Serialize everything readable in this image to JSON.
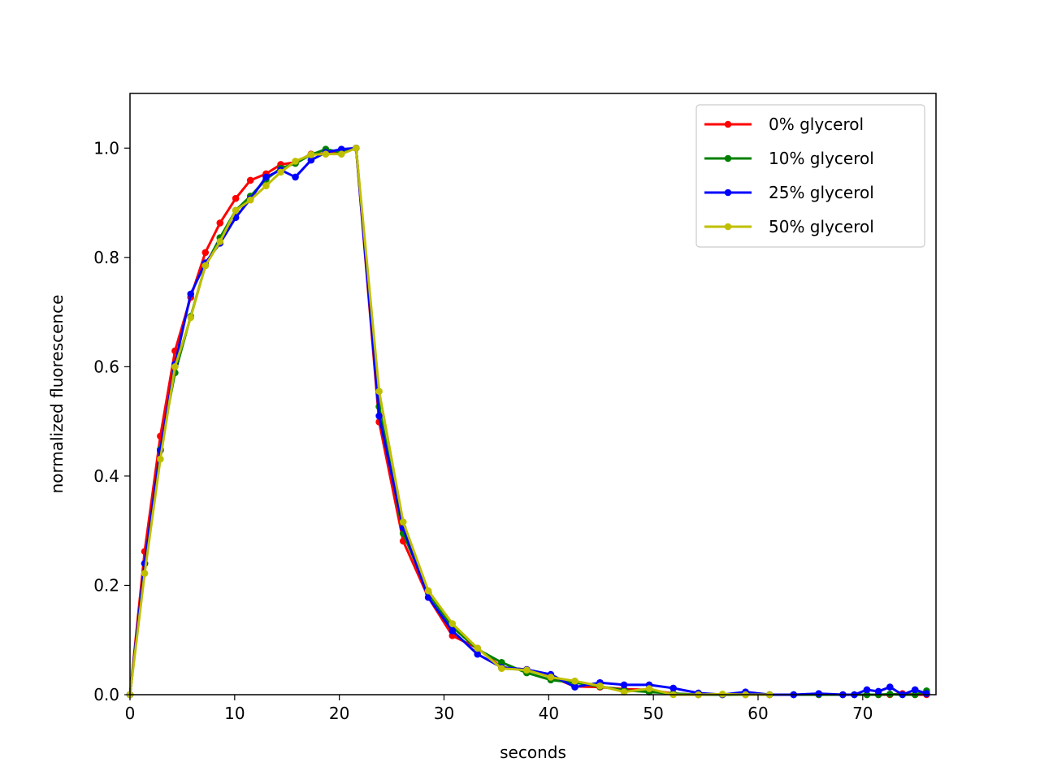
{
  "chart_data": {
    "type": "line",
    "title": "",
    "xlabel": "seconds",
    "ylabel": "normalized fluorescence",
    "xlim": [
      0,
      77
    ],
    "ylim": [
      0,
      1.1
    ],
    "xticks": [
      0,
      10,
      20,
      30,
      40,
      50,
      60,
      70
    ],
    "yticks": [
      0.0,
      0.2,
      0.4,
      0.6,
      0.8,
      1.0
    ],
    "xtick_labels": [
      "0",
      "10",
      "20",
      "30",
      "40",
      "50",
      "60",
      "70"
    ],
    "ytick_labels": [
      "0.0",
      "0.2",
      "0.4",
      "0.6",
      "0.8",
      "1.0"
    ],
    "grid": false,
    "legend_position": "top-right",
    "series": [
      {
        "name": "0% glycerol",
        "color": "#ff0000",
        "x": [
          0,
          1.4,
          2.9,
          4.3,
          5.8,
          7.2,
          8.6,
          10.1,
          11.5,
          13.0,
          14.4,
          15.8,
          17.3,
          18.7,
          20.2,
          21.6,
          23.8,
          26.1,
          28.5,
          30.8,
          33.2,
          35.5,
          37.9,
          40.2,
          42.5,
          44.9,
          47.2,
          49.6,
          51.9,
          54.3,
          56.6,
          58.8,
          61.1,
          63.4,
          65.8,
          68.1,
          69.2,
          70.4,
          71.5,
          72.6,
          73.8,
          75.0,
          76.1
        ],
        "y": [
          0.0,
          0.262,
          0.473,
          0.629,
          0.727,
          0.809,
          0.863,
          0.908,
          0.941,
          0.953,
          0.97,
          0.974,
          0.989,
          0.99,
          0.991,
          1.0,
          0.499,
          0.281,
          0.178,
          0.108,
          0.085,
          0.05,
          0.046,
          0.033,
          0.015,
          0.014,
          0.01,
          0.009,
          0.002,
          0.0,
          0.0,
          0.0,
          0.0,
          0.0,
          0.0,
          0.0,
          0.0,
          0.0,
          0.0,
          0.0,
          0.002,
          0.0,
          0.0
        ]
      },
      {
        "name": "10% glycerol",
        "color": "#008000",
        "x": [
          0,
          1.4,
          2.9,
          4.3,
          5.8,
          7.2,
          8.6,
          10.1,
          11.5,
          13.0,
          14.4,
          15.8,
          17.3,
          18.7,
          20.2,
          21.6,
          23.8,
          26.1,
          28.5,
          30.8,
          33.2,
          35.5,
          37.9,
          40.2,
          42.5,
          44.9,
          47.2,
          49.6,
          51.9,
          54.3,
          56.6,
          58.8,
          61.1,
          63.4,
          65.8,
          68.1,
          69.2,
          70.4,
          71.5,
          72.6,
          73.8,
          75.0,
          76.1
        ],
        "y": [
          0.0,
          0.24,
          0.449,
          0.589,
          0.692,
          0.785,
          0.836,
          0.886,
          0.912,
          0.943,
          0.963,
          0.972,
          0.988,
          0.998,
          0.992,
          1.0,
          0.527,
          0.295,
          0.186,
          0.124,
          0.083,
          0.059,
          0.04,
          0.027,
          0.022,
          0.015,
          0.008,
          0.005,
          0.002,
          0.0,
          0.0,
          0.0,
          0.0,
          0.0,
          0.0,
          0.0,
          0.0,
          0.0,
          0.0,
          0.001,
          0.0,
          0.0,
          0.007
        ]
      },
      {
        "name": "25% glycerol",
        "color": "#0000ff",
        "x": [
          0,
          1.4,
          2.9,
          4.3,
          5.8,
          7.2,
          8.6,
          10.1,
          11.5,
          13.0,
          14.4,
          15.8,
          17.3,
          18.7,
          20.2,
          21.6,
          23.8,
          26.1,
          28.5,
          30.8,
          33.2,
          35.5,
          37.9,
          40.2,
          42.5,
          44.9,
          47.2,
          49.6,
          51.9,
          54.3,
          56.6,
          58.8,
          61.1,
          63.4,
          65.8,
          68.1,
          69.2,
          70.4,
          71.5,
          72.6,
          73.8,
          75.0,
          76.1
        ],
        "y": [
          0.0,
          0.24,
          0.447,
          0.605,
          0.733,
          0.79,
          0.826,
          0.873,
          0.907,
          0.947,
          0.96,
          0.947,
          0.978,
          0.992,
          0.998,
          1.0,
          0.51,
          0.305,
          0.178,
          0.117,
          0.074,
          0.05,
          0.046,
          0.037,
          0.014,
          0.022,
          0.018,
          0.018,
          0.012,
          0.003,
          0.0,
          0.005,
          0.0,
          0.0,
          0.002,
          0.0,
          0.0,
          0.009,
          0.006,
          0.014,
          0.0,
          0.009,
          0.002
        ]
      },
      {
        "name": "50% glycerol",
        "color": "#bfbf00",
        "x": [
          0,
          1.4,
          2.9,
          4.3,
          5.8,
          7.2,
          8.6,
          10.1,
          11.5,
          13.0,
          14.4,
          15.8,
          17.3,
          18.7,
          20.2,
          21.6,
          23.8,
          26.1,
          28.5,
          30.8,
          33.2,
          35.5,
          37.9,
          40.2,
          42.5,
          44.9,
          47.2,
          49.6,
          51.9,
          54.3,
          56.6,
          58.8,
          61.1
        ],
        "y": [
          0.0,
          0.222,
          0.431,
          0.6,
          0.69,
          0.785,
          0.829,
          0.886,
          0.905,
          0.931,
          0.956,
          0.976,
          0.988,
          0.989,
          0.989,
          1.0,
          0.555,
          0.316,
          0.19,
          0.13,
          0.085,
          0.048,
          0.045,
          0.032,
          0.025,
          0.016,
          0.005,
          0.011,
          0.0,
          0.0,
          0.001,
          0.0,
          0.0
        ]
      }
    ]
  }
}
